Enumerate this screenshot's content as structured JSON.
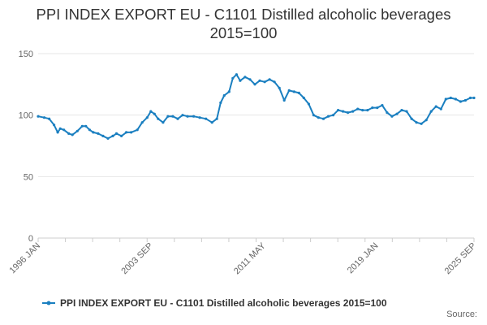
{
  "chart_data": {
    "type": "line",
    "title_lines": [
      "PPI INDEX EXPORT EU - C1101 Distilled alcoholic beverages",
      "2015=100"
    ],
    "x_start": "1996-01",
    "x_end": "2025-09",
    "x_tick_labels": [
      {
        "date": "1996-01",
        "label": "1996 JAN"
      },
      {
        "date": "2003-09",
        "label": "2003 SEP"
      },
      {
        "date": "2011-05",
        "label": "2011 MAY"
      },
      {
        "date": "2019-01",
        "label": "2019 JAN"
      },
      {
        "date": "2025-09",
        "label": "2025 SEP"
      }
    ],
    "y_ticks": [
      0,
      50,
      100,
      150
    ],
    "ylim": [
      0,
      150
    ],
    "grid": true,
    "legend_position": "bottom",
    "color": "#1a7fc0",
    "series": [
      {
        "name": "PPI INDEX EXPORT EU - C1101 Distilled alcoholic beverages 2015=100",
        "points": [
          [
            "1996-01",
            99
          ],
          [
            "1996-06",
            98
          ],
          [
            "1996-10",
            97
          ],
          [
            "1997-02",
            92
          ],
          [
            "1997-05",
            86
          ],
          [
            "1997-07",
            89
          ],
          [
            "1997-10",
            88
          ],
          [
            "1998-02",
            85
          ],
          [
            "1998-05",
            84
          ],
          [
            "1998-09",
            87
          ],
          [
            "1999-01",
            91
          ],
          [
            "1999-04",
            91
          ],
          [
            "1999-07",
            88
          ],
          [
            "1999-10",
            86
          ],
          [
            "2000-02",
            85
          ],
          [
            "2000-06",
            83
          ],
          [
            "2000-10",
            81
          ],
          [
            "2001-02",
            83
          ],
          [
            "2001-05",
            85
          ],
          [
            "2001-09",
            83
          ],
          [
            "2002-01",
            86
          ],
          [
            "2002-05",
            86
          ],
          [
            "2002-10",
            88
          ],
          [
            "2003-02",
            94
          ],
          [
            "2003-06",
            98
          ],
          [
            "2003-09",
            103
          ],
          [
            "2003-12",
            101
          ],
          [
            "2004-03",
            97
          ],
          [
            "2004-07",
            94
          ],
          [
            "2004-11",
            99
          ],
          [
            "2005-03",
            99
          ],
          [
            "2005-07",
            97
          ],
          [
            "2005-11",
            100
          ],
          [
            "2006-03",
            99
          ],
          [
            "2006-08",
            99
          ],
          [
            "2007-01",
            98
          ],
          [
            "2007-06",
            97
          ],
          [
            "2007-11",
            94
          ],
          [
            "2008-03",
            97
          ],
          [
            "2008-06",
            110
          ],
          [
            "2008-09",
            116
          ],
          [
            "2009-01",
            119
          ],
          [
            "2009-04",
            130
          ],
          [
            "2009-07",
            133
          ],
          [
            "2009-10",
            128
          ],
          [
            "2010-02",
            131
          ],
          [
            "2010-06",
            129
          ],
          [
            "2010-10",
            125
          ],
          [
            "2011-02",
            128
          ],
          [
            "2011-06",
            127
          ],
          [
            "2011-10",
            129
          ],
          [
            "2012-02",
            127
          ],
          [
            "2012-06",
            122
          ],
          [
            "2012-10",
            112
          ],
          [
            "2013-02",
            120
          ],
          [
            "2013-06",
            119
          ],
          [
            "2013-10",
            118
          ],
          [
            "2014-02",
            114
          ],
          [
            "2014-06",
            109
          ],
          [
            "2014-10",
            100
          ],
          [
            "2015-02",
            98
          ],
          [
            "2015-06",
            97
          ],
          [
            "2015-10",
            99
          ],
          [
            "2016-02",
            100
          ],
          [
            "2016-06",
            104
          ],
          [
            "2016-10",
            103
          ],
          [
            "2017-02",
            102
          ],
          [
            "2017-06",
            103
          ],
          [
            "2017-10",
            105
          ],
          [
            "2018-02",
            104
          ],
          [
            "2018-06",
            104
          ],
          [
            "2018-10",
            106
          ],
          [
            "2019-02",
            106
          ],
          [
            "2019-06",
            108
          ],
          [
            "2019-10",
            102
          ],
          [
            "2020-02",
            99
          ],
          [
            "2020-06",
            101
          ],
          [
            "2020-10",
            104
          ],
          [
            "2021-02",
            103
          ],
          [
            "2021-06",
            97
          ],
          [
            "2021-10",
            94
          ],
          [
            "2022-02",
            93
          ],
          [
            "2022-06",
            96
          ],
          [
            "2022-10",
            103
          ],
          [
            "2023-02",
            107
          ],
          [
            "2023-06",
            105
          ],
          [
            "2023-10",
            113
          ],
          [
            "2024-02",
            114
          ],
          [
            "2024-06",
            113
          ],
          [
            "2024-10",
            111
          ],
          [
            "2025-02",
            112
          ],
          [
            "2025-06",
            114
          ],
          [
            "2025-09",
            114
          ]
        ]
      }
    ],
    "source_label": "Source:"
  }
}
